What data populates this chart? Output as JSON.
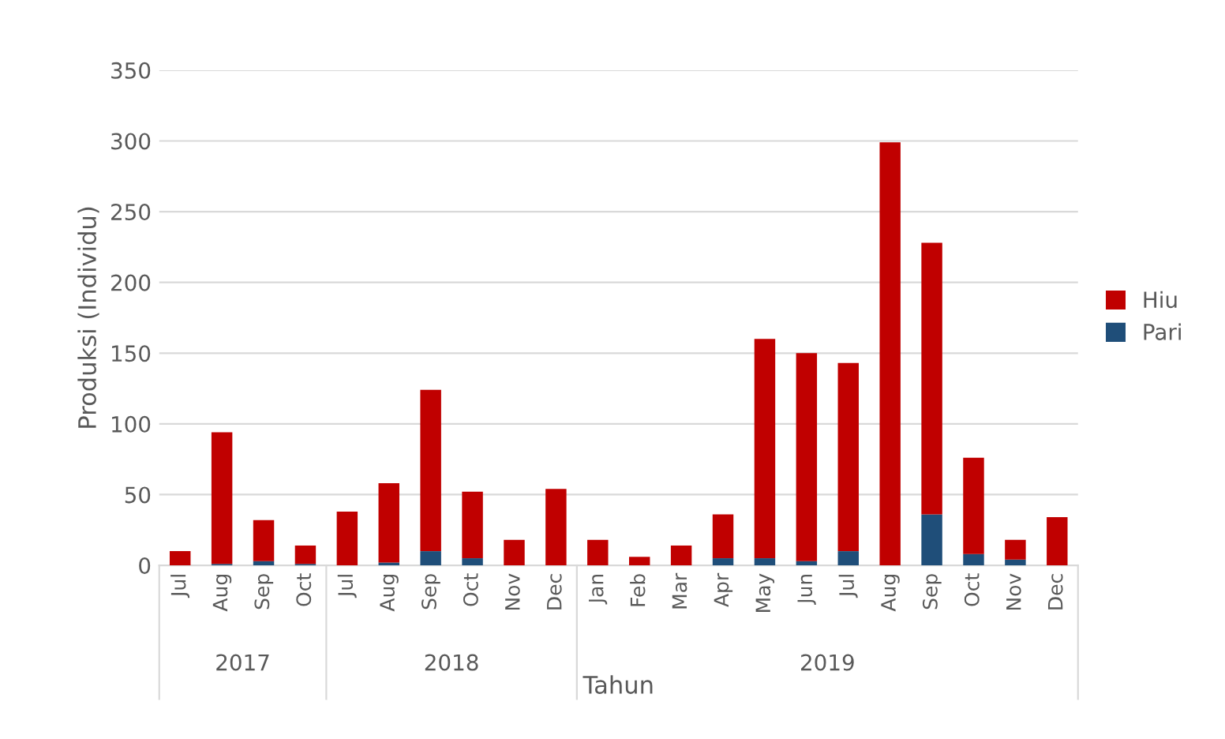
{
  "chart_data": {
    "type": "bar",
    "stacked": true,
    "categories": [
      "Jul",
      "Aug",
      "Sep",
      "Oct",
      "Jul",
      "Aug",
      "Sep",
      "Oct",
      "Nov",
      "Dec",
      "Jan",
      "Feb",
      "Mar",
      "Apr",
      "May",
      "Jun",
      "Jul",
      "Aug",
      "Sep",
      "Oct",
      "Nov",
      "Dec"
    ],
    "series": [
      {
        "name": "Pari",
        "color": "#1f4e79",
        "values": [
          0,
          1,
          3,
          1,
          0,
          2,
          10,
          5,
          0,
          0,
          0,
          0,
          0,
          5,
          5,
          3,
          10,
          0,
          36,
          8,
          4,
          0
        ]
      },
      {
        "name": "Hiu",
        "color": "#c00000",
        "values": [
          10,
          93,
          29,
          13,
          38,
          56,
          114,
          47,
          18,
          54,
          18,
          6,
          14,
          31,
          155,
          147,
          133,
          299,
          192,
          68,
          14,
          34
        ]
      }
    ],
    "xlabel": "Tahun",
    "ylabel": "Produksi (Individu)",
    "annotations": [
      "2017",
      "2018",
      "2019"
    ],
    "ylim": [
      0,
      350
    ],
    "yticks": [
      0,
      50,
      100,
      150,
      200,
      250,
      300,
      350
    ],
    "grid": "y",
    "legend": "right"
  }
}
